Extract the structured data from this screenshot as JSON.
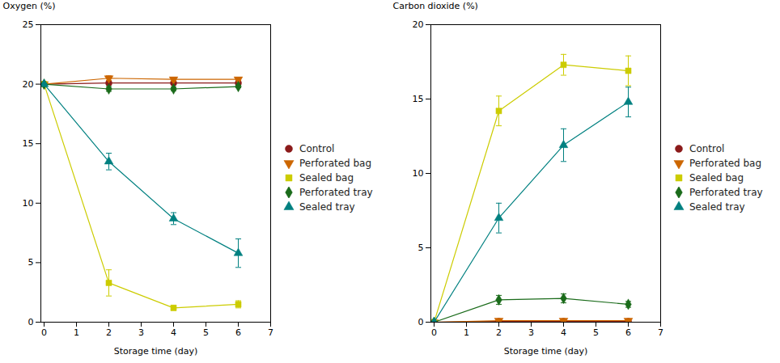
{
  "chart_data": [
    {
      "type": "line",
      "x": [
        0,
        2,
        4,
        6
      ],
      "xlabel": "Storage time (day)",
      "ylabel": "Oxygen (%)",
      "xlim": [
        -0.1,
        7
      ],
      "xticks": [
        0,
        1,
        2,
        3,
        4,
        5,
        6,
        7
      ],
      "ylim": [
        0,
        25
      ],
      "yticks": [
        0,
        5,
        10,
        15,
        20,
        25
      ],
      "grid": false,
      "legend": "right",
      "series": [
        {
          "name": "Control",
          "color": "#8B1A1A",
          "marker": "circle",
          "values": [
            20.0,
            20.1,
            20.1,
            20.1
          ],
          "yerr": [
            0.05,
            0.1,
            0.1,
            0.1
          ]
        },
        {
          "name": "Perforated bag",
          "color": "#CC6600",
          "marker": "triangle-down",
          "values": [
            20.0,
            20.5,
            20.4,
            20.4
          ],
          "yerr": [
            0.05,
            0.2,
            0.15,
            0.1
          ]
        },
        {
          "name": "Sealed bag",
          "color": "#CCCC00",
          "marker": "square",
          "values": [
            20.0,
            3.3,
            1.2,
            1.5
          ],
          "yerr": [
            0.05,
            1.1,
            0.2,
            0.3
          ]
        },
        {
          "name": "Perforated tray",
          "color": "#1A6B1A",
          "marker": "diamond",
          "values": [
            20.0,
            19.6,
            19.6,
            19.8
          ],
          "yerr": [
            0.05,
            0.2,
            0.15,
            0.1
          ]
        },
        {
          "name": "Sealed tray",
          "color": "#008080",
          "marker": "triangle-up",
          "values": [
            20.0,
            13.5,
            8.7,
            5.8
          ],
          "yerr": [
            0.05,
            0.7,
            0.5,
            1.2
          ]
        }
      ]
    },
    {
      "type": "line",
      "x": [
        0,
        2,
        4,
        6
      ],
      "xlabel": "Storage time (day)",
      "ylabel": "Carbon dioxide (%)",
      "xlim": [
        -0.1,
        7
      ],
      "xticks": [
        0,
        1,
        2,
        3,
        4,
        5,
        6,
        7
      ],
      "ylim": [
        0,
        20
      ],
      "yticks": [
        0,
        5,
        10,
        15,
        20
      ],
      "grid": false,
      "legend": "right",
      "series": [
        {
          "name": "Control",
          "color": "#8B1A1A",
          "marker": "circle",
          "values": [
            0.0,
            0.05,
            0.05,
            0.05
          ],
          "yerr": [
            0.0,
            0.02,
            0.02,
            0.02
          ]
        },
        {
          "name": "Perforated bag",
          "color": "#CC6600",
          "marker": "triangle-down",
          "values": [
            0.0,
            0.1,
            0.1,
            0.1
          ],
          "yerr": [
            0.0,
            0.05,
            0.05,
            0.05
          ]
        },
        {
          "name": "Sealed bag",
          "color": "#CCCC00",
          "marker": "square",
          "values": [
            0.0,
            14.2,
            17.3,
            16.9
          ],
          "yerr": [
            0.0,
            1.0,
            0.7,
            1.0
          ]
        },
        {
          "name": "Perforated tray",
          "color": "#1A6B1A",
          "marker": "diamond",
          "values": [
            0.0,
            1.5,
            1.6,
            1.2
          ],
          "yerr": [
            0.0,
            0.3,
            0.3,
            0.2
          ]
        },
        {
          "name": "Sealed tray",
          "color": "#008080",
          "marker": "triangle-up",
          "values": [
            0.0,
            7.0,
            11.9,
            14.8
          ],
          "yerr": [
            0.0,
            1.0,
            1.1,
            1.0
          ]
        }
      ]
    }
  ]
}
